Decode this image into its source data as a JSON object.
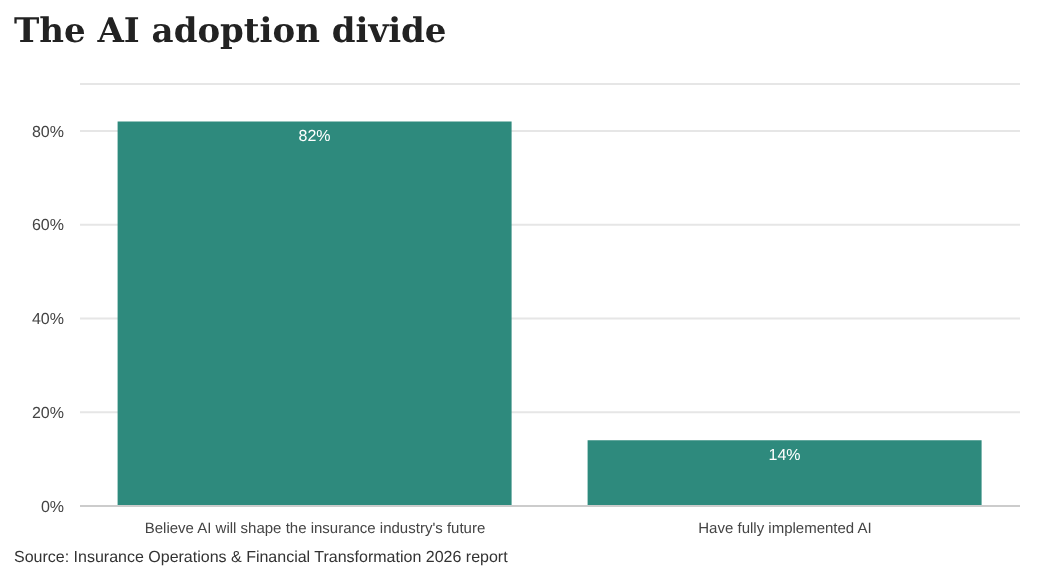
{
  "chart_data": {
    "type": "bar",
    "title": "The AI adoption divide",
    "categories": [
      "Believe AI will shape the insurance industry's future",
      "Have fully implemented AI"
    ],
    "values": [
      82,
      14
    ],
    "color": "#2e8a7d",
    "value_labels": [
      "82%",
      "14%"
    ],
    "ylim": [
      0,
      90
    ],
    "yticks": [
      {
        "value": 0,
        "label": "0%"
      },
      {
        "value": 20,
        "label": "20%"
      },
      {
        "value": 40,
        "label": "40%"
      },
      {
        "value": 60,
        "label": "60%"
      },
      {
        "value": 80,
        "label": "80%"
      }
    ],
    "grid": "y",
    "annotations": [
      "Source: Insurance Operations & Financial Transformation 2026 report"
    ]
  }
}
